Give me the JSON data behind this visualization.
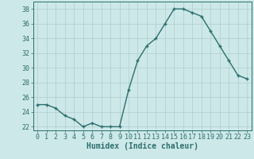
{
  "x": [
    0,
    1,
    2,
    3,
    4,
    5,
    6,
    7,
    8,
    9,
    10,
    11,
    12,
    13,
    14,
    15,
    16,
    17,
    18,
    19,
    20,
    21,
    22,
    23
  ],
  "y": [
    25,
    25,
    24.5,
    23.5,
    23,
    22,
    22.5,
    22,
    22,
    22,
    27,
    31,
    33,
    34,
    36,
    38,
    38,
    37.5,
    37,
    35,
    33,
    31,
    29,
    28.5
  ],
  "line_color": "#2d6e6e",
  "marker": "+",
  "marker_size": 3,
  "xlabel": "Humidex (Indice chaleur)",
  "xlim": [
    -0.5,
    23.5
  ],
  "ylim": [
    21.5,
    39
  ],
  "yticks": [
    22,
    24,
    26,
    28,
    30,
    32,
    34,
    36,
    38
  ],
  "xticks": [
    0,
    1,
    2,
    3,
    4,
    5,
    6,
    7,
    8,
    9,
    10,
    11,
    12,
    13,
    14,
    15,
    16,
    17,
    18,
    19,
    20,
    21,
    22,
    23
  ],
  "background_color": "#cde8e8",
  "grid_color": "#b0cccc",
  "line_width": 1.0,
  "xlabel_fontsize": 7,
  "tick_fontsize": 6
}
